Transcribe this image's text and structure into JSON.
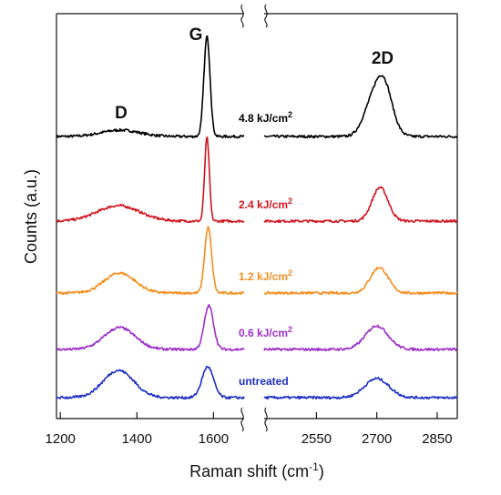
{
  "chart_data": {
    "type": "line",
    "title": "",
    "xlabel": "Raman shift (cm",
    "xlabel_sup": "-1",
    "xlabel_end": ")",
    "ylabel": "Counts (a.u.)",
    "broken_x_axis": true,
    "x_segments": [
      {
        "range": [
          1190,
          1680
        ],
        "ticks": [
          1200,
          1400,
          1600
        ]
      },
      {
        "range": [
          2420,
          2900
        ],
        "ticks": [
          2550,
          2700,
          2850
        ]
      }
    ],
    "tick_labels": [
      "1200",
      "1400",
      "1600",
      "2550",
      "2700",
      "2850"
    ],
    "peak_labels": [
      {
        "text": "D",
        "x": 1370
      },
      {
        "text": "G",
        "x": 1580
      },
      {
        "text": "2D",
        "x": 2710
      }
    ],
    "series": [
      {
        "name": "4.8 kJ/cm",
        "name_sup": "2",
        "color": "#000000",
        "offset": 4.0,
        "peaks": [
          {
            "center": 1357,
            "height": 0.07,
            "width": 50
          },
          {
            "center": 1583,
            "height": 1.1,
            "width": 8
          },
          {
            "center": 2715,
            "height": 0.62,
            "width": 22
          },
          {
            "center": 2680,
            "height": 0.22,
            "width": 20
          }
        ]
      },
      {
        "name": "2.4 kJ/cm",
        "name_sup": "2",
        "color": "#d0141c",
        "offset": 3.0,
        "peaks": [
          {
            "center": 1352,
            "height": 0.17,
            "width": 55
          },
          {
            "center": 1583,
            "height": 0.92,
            "width": 6
          },
          {
            "center": 2708,
            "height": 0.37,
            "width": 20
          }
        ]
      },
      {
        "name": "1.2 kJ/cm",
        "name_sup": "2",
        "color": "#f58d1e",
        "offset": 2.0,
        "peaks": [
          {
            "center": 1355,
            "height": 0.22,
            "width": 40
          },
          {
            "center": 1586,
            "height": 0.72,
            "width": 9
          },
          {
            "center": 2706,
            "height": 0.28,
            "width": 22
          }
        ]
      },
      {
        "name": "0.6 kJ/cm",
        "name_sup": "2",
        "color": "#9d2fc9",
        "offset": 1.0,
        "peaks": [
          {
            "center": 1355,
            "height": 0.24,
            "width": 40
          },
          {
            "center": 1588,
            "height": 0.48,
            "width": 12
          },
          {
            "center": 2700,
            "height": 0.26,
            "width": 28
          }
        ]
      },
      {
        "name": "untreated",
        "name_sup": "",
        "color": "#1d2fc4",
        "offset": 0.0,
        "peaks": [
          {
            "center": 1352,
            "height": 0.3,
            "width": 40
          },
          {
            "center": 1585,
            "height": 0.34,
            "width": 15
          },
          {
            "center": 2700,
            "height": 0.21,
            "width": 30
          }
        ]
      }
    ]
  }
}
